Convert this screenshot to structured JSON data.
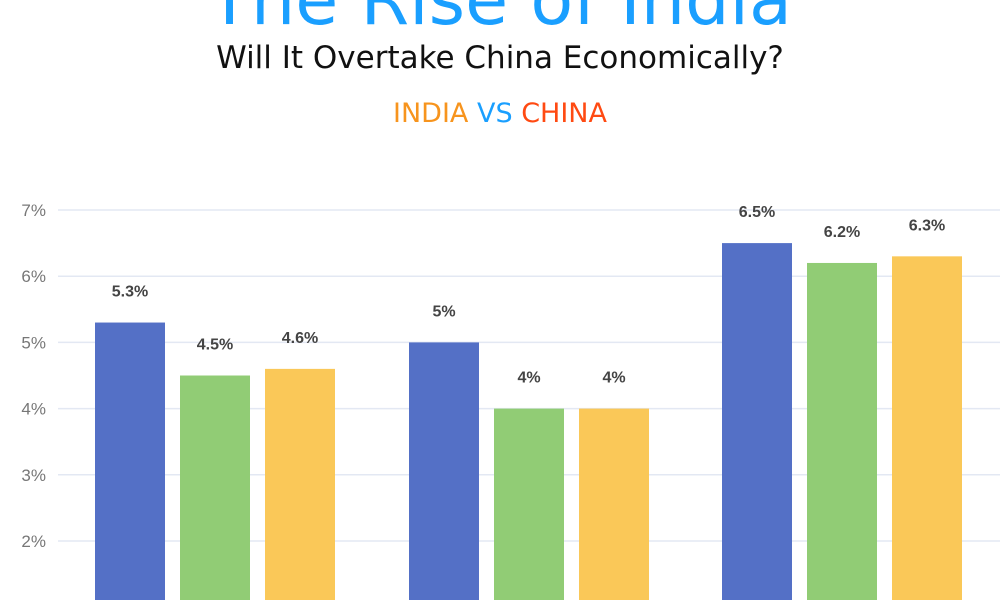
{
  "header": {
    "title": "The Rise of India",
    "subtitle": "Will It Overtake China Economically?",
    "vs_india": "INDIA",
    "vs_word": "VS",
    "vs_china": "CHINA"
  },
  "colors": {
    "title": "#1a9fff",
    "india": "#f7941d",
    "vs": "#1a9fff",
    "china": "#ff4a12"
  },
  "chart_data": {
    "type": "bar",
    "title": "",
    "xlabel": "",
    "ylabel": "",
    "ylim": [
      1.1,
      7
    ],
    "yticks": [
      2,
      3,
      4,
      5,
      6,
      7
    ],
    "ytick_labels": [
      "2%",
      "3%",
      "4%",
      "5%",
      "6%",
      "7%"
    ],
    "grid": true,
    "groups": 3,
    "series": [
      {
        "color": "#5470c6",
        "values": [
          5.3,
          5,
          6.5
        ],
        "labels": [
          "5.3%",
          "5%",
          "6.5%"
        ]
      },
      {
        "color": "#91cc75",
        "values": [
          4.5,
          4,
          6.2
        ],
        "labels": [
          "4.5%",
          "4%",
          "6.2%"
        ]
      },
      {
        "color": "#fac858",
        "values": [
          4.6,
          4,
          6.3
        ],
        "labels": [
          "4.6%",
          "4%",
          "6.3%"
        ]
      }
    ]
  }
}
